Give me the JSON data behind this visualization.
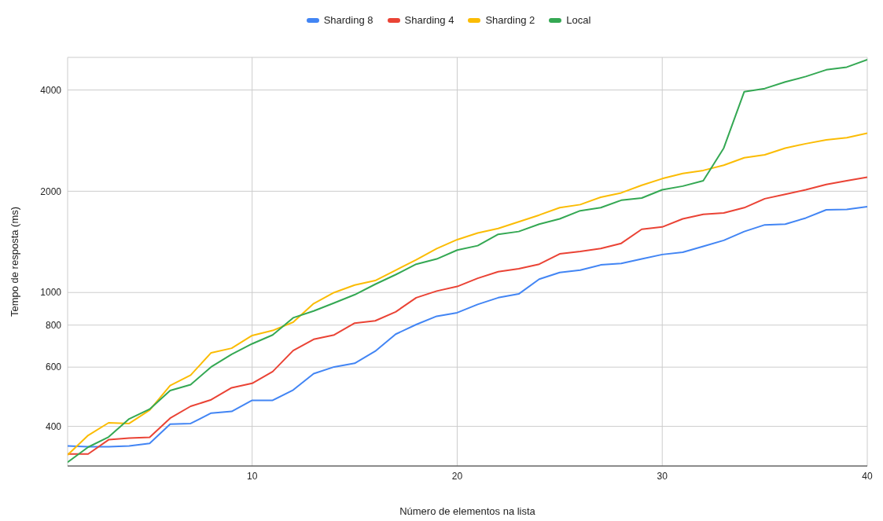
{
  "chart_data": {
    "type": "line",
    "xlabel": "Número de elementos na lista",
    "ylabel": "Tempo de resposta (ms)",
    "x": [
      1,
      2,
      3,
      4,
      5,
      6,
      7,
      8,
      9,
      10,
      11,
      12,
      13,
      14,
      15,
      16,
      17,
      18,
      19,
      20,
      21,
      22,
      23,
      24,
      25,
      26,
      27,
      28,
      29,
      30,
      31,
      32,
      33,
      34,
      35,
      36,
      37,
      38,
      39,
      40
    ],
    "xlim": [
      1,
      40
    ],
    "xticks": [
      10,
      20,
      30,
      40
    ],
    "ylim": [
      305,
      5000
    ],
    "yticks": [
      400,
      600,
      800,
      1000,
      2000,
      4000
    ],
    "log": "y",
    "grid": true,
    "legend": "top",
    "marker": "none",
    "line_style": "solid",
    "series": [
      {
        "name": "Sharding 8",
        "color": "#4285f4",
        "values": [
          350,
          348,
          348,
          350,
          356,
          406,
          408,
          438,
          443,
          478,
          478,
          513,
          574,
          601,
          616,
          669,
          752,
          803,
          850,
          871,
          922,
          965,
          990,
          1096,
          1147,
          1165,
          1208,
          1220,
          1258,
          1297,
          1317,
          1371,
          1429,
          1518,
          1589,
          1597,
          1665,
          1761,
          1766,
          1800
        ]
      },
      {
        "name": "Sharding 4",
        "color": "#ea4335",
        "values": [
          331,
          331,
          365,
          369,
          371,
          423,
          459,
          480,
          521,
          537,
          582,
          672,
          726,
          748,
          811,
          824,
          876,
          965,
          1010,
          1042,
          1102,
          1153,
          1177,
          1214,
          1303,
          1324,
          1351,
          1400,
          1542,
          1566,
          1656,
          1707,
          1724,
          1787,
          1900,
          1959,
          2020,
          2094,
          2148,
          2202
        ]
      },
      {
        "name": "Sharding 2",
        "color": "#fbbc04",
        "values": [
          329,
          376,
          410,
          408,
          447,
          529,
          568,
          662,
          683,
          745,
          771,
          816,
          927,
          1000,
          1052,
          1085,
          1165,
          1251,
          1351,
          1436,
          1503,
          1550,
          1623,
          1699,
          1787,
          1825,
          1920,
          1978,
          2083,
          2180,
          2259,
          2306,
          2390,
          2515,
          2567,
          2687,
          2769,
          2842,
          2885,
          2974
        ]
      },
      {
        "name": "Local",
        "color": "#34a853",
        "values": [
          313,
          347,
          372,
          421,
          450,
          511,
          532,
          601,
          655,
          704,
          748,
          841,
          881,
          931,
          985,
          1058,
          1130,
          1214,
          1258,
          1337,
          1378,
          1489,
          1518,
          1597,
          1656,
          1750,
          1787,
          1880,
          1909,
          2020,
          2071,
          2148,
          2687,
          3954,
          4040,
          4228,
          4385,
          4592,
          4677,
          4924
        ]
      }
    ]
  }
}
